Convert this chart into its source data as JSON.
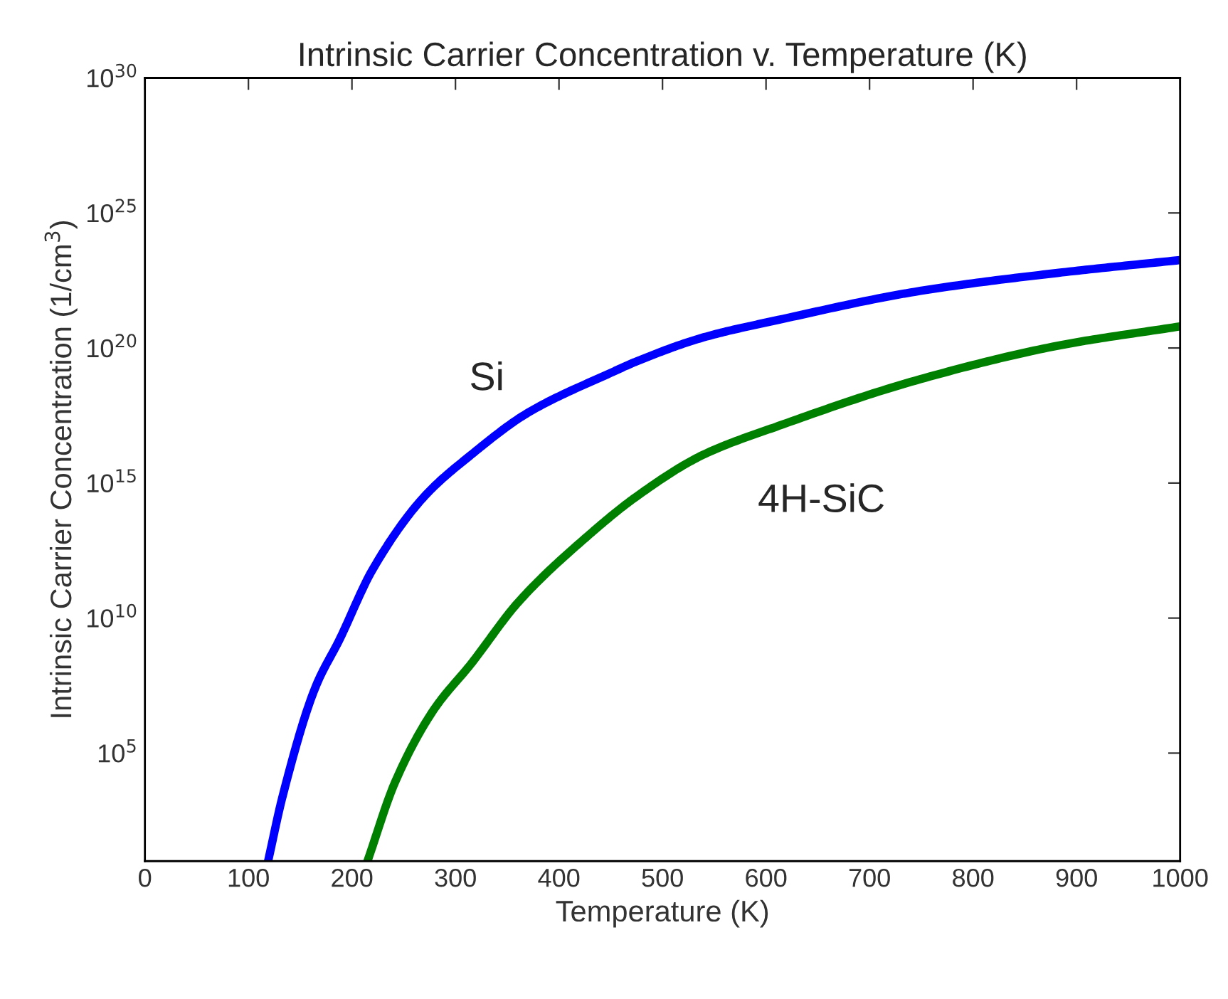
{
  "chart_data": {
    "type": "line",
    "title": "Intrinsic Carrier Concentration v. Temperature (K)",
    "xlabel": "Temperature (K)",
    "ylabel": "Intrinsic Carrier Concentration (1/cm$^{3}$)",
    "log": "y",
    "grid": false,
    "legend": false,
    "line_style": "solid",
    "marker": "none",
    "xlim": [
      0,
      1000
    ],
    "xticks": [
      0,
      100,
      200,
      300,
      400,
      500,
      600,
      700,
      800,
      900,
      1000
    ],
    "ylim": [
      10,
      1e+30
    ],
    "yticks": [
      {
        "value": 100000.0,
        "label": "10$^{5}$"
      },
      {
        "value": 10000000000.0,
        "label": "10$^{10}$"
      },
      {
        "value": 1000000000000000.0,
        "label": "10$^{15}$"
      },
      {
        "value": 1e+20,
        "label": "10$^{20}$"
      },
      {
        "value": 1e+25,
        "label": "10$^{25}$"
      },
      {
        "value": 1e+30,
        "label": "10$^{30}$"
      }
    ],
    "series": [
      {
        "name": "Si",
        "color": "#0000ff",
        "x": [
          119,
          133,
          165,
          188,
          220,
          270,
          315,
          370,
          452,
          475,
          540,
          612,
          749,
          886,
          1000
        ],
        "values": [
          10,
          2500.0,
          29000000.0,
          1600000000.0,
          630000000000.0,
          320000000000000.0,
          1.1e+16,
          4e+17,
          1.3e+19,
          3.2e+19,
          2.5e+20,
          1.1e+21,
          1.3e+22,
          6.3e+22,
          1.8e+23
        ]
      },
      {
        "name": "4H-SiC",
        "color": "#008000",
        "x": [
          215,
          242,
          279,
          315,
          361,
          430,
          475,
          539,
          612,
          749,
          886,
          1000
        ],
        "values": [
          10,
          9000.0,
          4000000.0,
          200000000.0,
          40000000000.0,
          13000000000000.0,
          320000000000000.0,
          1.1e+16,
          1.3e+17,
          7e+18,
          1.3e+20,
          6.3e+20
        ]
      }
    ]
  }
}
